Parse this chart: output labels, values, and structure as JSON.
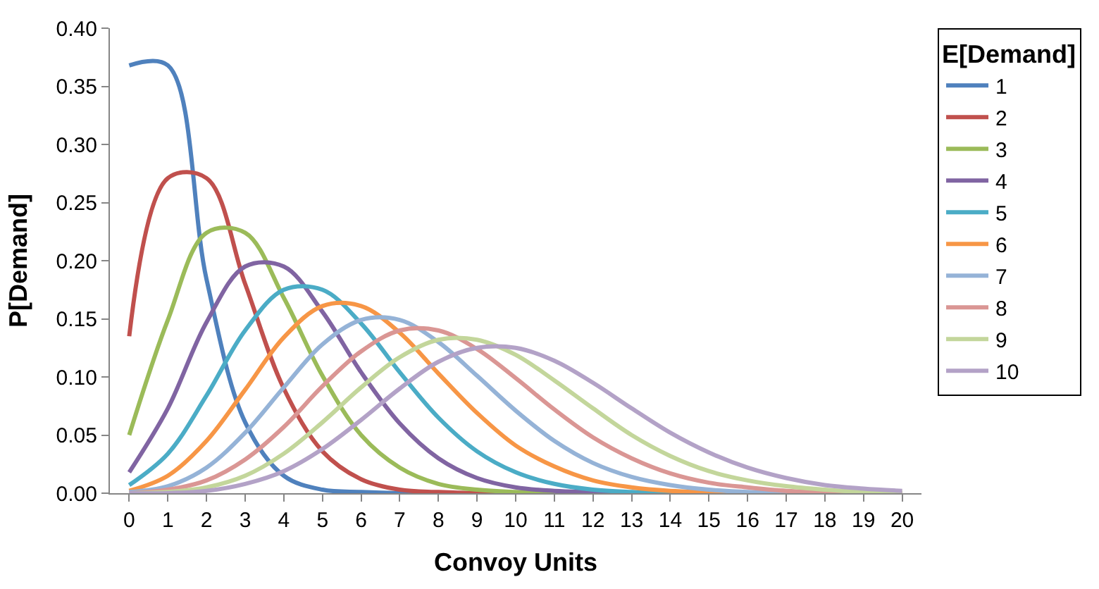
{
  "chart_data": {
    "type": "line",
    "xlabel": "Convoy Units",
    "ylabel": "P[Demand]",
    "legend_title": "E[Demand]",
    "legend": "right",
    "marker": "none",
    "line_style": "solid",
    "x": [
      0,
      1,
      2,
      3,
      4,
      5,
      6,
      7,
      8,
      9,
      10,
      11,
      12,
      13,
      14,
      15,
      16,
      17,
      18,
      19,
      20
    ],
    "xlim": [
      -0.5,
      20.5
    ],
    "xticks": [
      0,
      1,
      2,
      3,
      4,
      5,
      6,
      7,
      8,
      9,
      10,
      11,
      12,
      13,
      14,
      15,
      16,
      17,
      18,
      19,
      20
    ],
    "ylim": [
      0,
      0.4
    ],
    "yticks": [
      {
        "value": 0,
        "label": "0.00"
      },
      {
        "value": 0.05,
        "label": "0.05"
      },
      {
        "value": 0.1,
        "label": "0.10"
      },
      {
        "value": 0.15,
        "label": "0.15"
      },
      {
        "value": 0.2,
        "label": "0.20"
      },
      {
        "value": 0.25,
        "label": "0.25"
      },
      {
        "value": 0.3,
        "label": "0.30"
      },
      {
        "value": 0.35,
        "label": "0.35"
      },
      {
        "value": 0.4,
        "label": "0.40"
      }
    ],
    "series": [
      {
        "name": "1",
        "color": "#4f81bd",
        "values": [
          0.368,
          0.368,
          0.184,
          0.061,
          0.015,
          0.003,
          0.001,
          0,
          0,
          0,
          0,
          0,
          0,
          0,
          0,
          0,
          0,
          0,
          0,
          0,
          0
        ]
      },
      {
        "name": "2",
        "color": "#c0504d",
        "values": [
          0.135,
          0.271,
          0.271,
          0.18,
          0.09,
          0.036,
          0.012,
          0.003,
          0.001,
          0,
          0,
          0,
          0,
          0,
          0,
          0,
          0,
          0,
          0,
          0,
          0
        ]
      },
      {
        "name": "3",
        "color": "#9bbb59",
        "values": [
          0.05,
          0.149,
          0.224,
          0.224,
          0.168,
          0.101,
          0.05,
          0.022,
          0.008,
          0.003,
          0.001,
          0,
          0,
          0,
          0,
          0,
          0,
          0,
          0,
          0,
          0
        ]
      },
      {
        "name": "4",
        "color": "#8064a2",
        "values": [
          0.018,
          0.073,
          0.147,
          0.195,
          0.195,
          0.156,
          0.104,
          0.06,
          0.03,
          0.013,
          0.005,
          0.002,
          0.001,
          0,
          0,
          0,
          0,
          0,
          0,
          0,
          0
        ]
      },
      {
        "name": "5",
        "color": "#4bacc6",
        "values": [
          0.007,
          0.034,
          0.084,
          0.14,
          0.175,
          0.175,
          0.146,
          0.104,
          0.065,
          0.036,
          0.018,
          0.008,
          0.003,
          0.001,
          0,
          0,
          0,
          0,
          0,
          null,
          null
        ]
      },
      {
        "name": "6",
        "color": "#f79646",
        "values": [
          0.002,
          0.015,
          0.045,
          0.089,
          0.134,
          0.161,
          0.161,
          0.138,
          0.103,
          0.069,
          0.041,
          0.023,
          0.011,
          0.005,
          0.002,
          0.001,
          0,
          0,
          0,
          null,
          null
        ]
      },
      {
        "name": "7",
        "color": "#95b3d7",
        "values": [
          0.001,
          0.006,
          0.022,
          0.052,
          0.091,
          0.128,
          0.149,
          0.149,
          0.13,
          0.101,
          0.071,
          0.045,
          0.026,
          0.014,
          0.007,
          0.003,
          0.001,
          0.001,
          0,
          0,
          0
        ]
      },
      {
        "name": "8",
        "color": "#da9694",
        "values": [
          0,
          0.003,
          0.011,
          0.029,
          0.057,
          0.092,
          0.122,
          0.14,
          0.14,
          0.124,
          0.099,
          0.072,
          0.048,
          0.03,
          0.017,
          0.009,
          0.005,
          0.002,
          0.001,
          0,
          0
        ]
      },
      {
        "name": "9",
        "color": "#c3d69b",
        "values": [
          0,
          0.001,
          0.005,
          0.015,
          0.034,
          0.061,
          0.091,
          0.117,
          0.132,
          0.132,
          0.119,
          0.097,
          0.073,
          0.05,
          0.032,
          0.019,
          0.011,
          0.006,
          0.003,
          0.001,
          0.001
        ]
      },
      {
        "name": "10",
        "color": "#b3a2c7",
        "values": [
          0,
          0,
          0.002,
          0.008,
          0.019,
          0.038,
          0.063,
          0.09,
          0.113,
          0.125,
          0.125,
          0.114,
          0.095,
          0.073,
          0.052,
          0.035,
          0.022,
          0.013,
          0.007,
          0.004,
          0.002
        ]
      }
    ]
  }
}
